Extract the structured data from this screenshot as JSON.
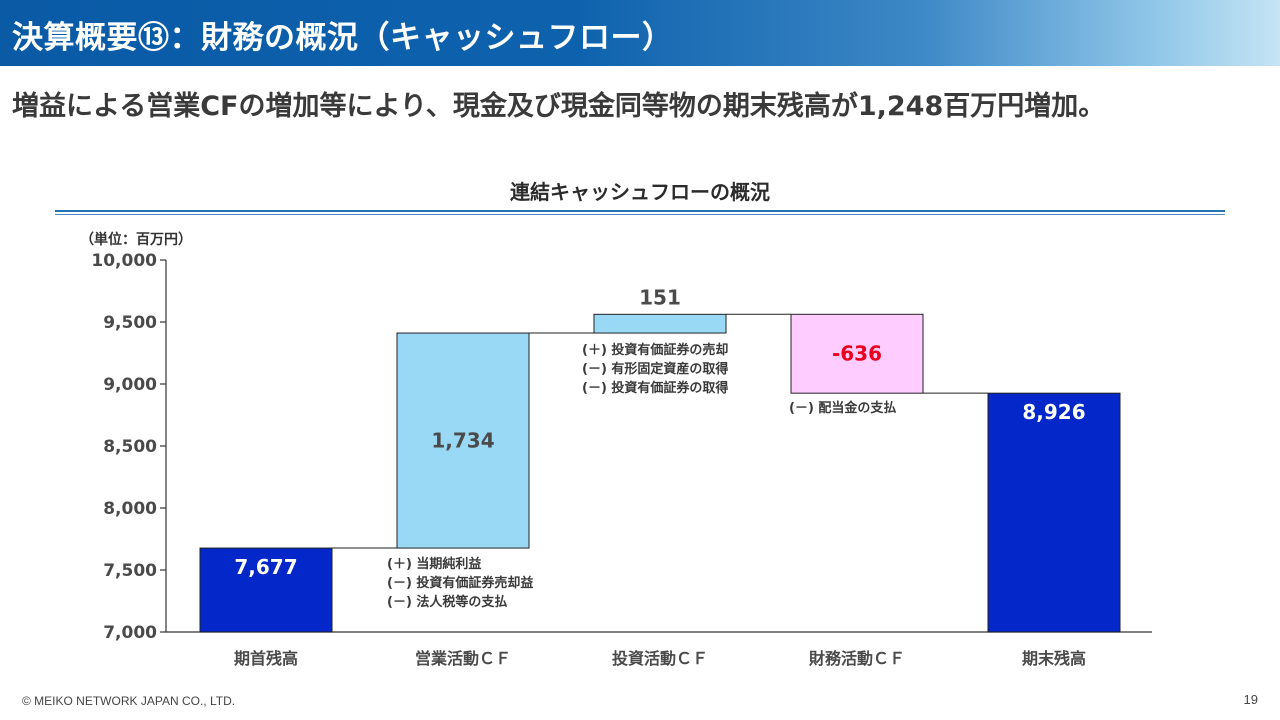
{
  "header": {
    "title": "決算概要⑬：財務の概況（キャッシュフロー）",
    "headline": "増益による営業CFの増加等により、現金及び現金同等物の期末残高が1,248百万円増加。"
  },
  "footer": {
    "copyright": "© MEIKO NETWORK JAPAN CO., LTD.",
    "page_number": "19"
  },
  "colors": {
    "title_bar": "#0e62ad",
    "bar_total": "#0327c8",
    "bar_positive": "#9ad9f5",
    "bar_negative": "#ffccff",
    "negative_label": "#e8001e",
    "rule": "#2472b8"
  },
  "chart_data": {
    "type": "bar",
    "subtype": "waterfall",
    "title": "連結キャッシュフローの概況",
    "unit_label": "（単位：百万円）",
    "ylim": [
      7000,
      10000
    ],
    "yticks": [
      7000,
      7500,
      8000,
      8500,
      9000,
      9500,
      10000
    ],
    "ytick_labels": [
      "7,000",
      "7,500",
      "8,000",
      "8,500",
      "9,000",
      "9,500",
      "10,000"
    ],
    "categories": [
      "期首残高",
      "営業活動ＣＦ",
      "投資活動ＣＦ",
      "財務活動ＣＦ",
      "期末残高"
    ],
    "bars": [
      {
        "category": "期首残高",
        "kind": "total",
        "start": 7000,
        "end": 7677,
        "label": "7,677"
      },
      {
        "category": "営業活動ＣＦ",
        "kind": "increase",
        "start": 7677,
        "end": 9411,
        "label": "1,734"
      },
      {
        "category": "投資活動ＣＦ",
        "kind": "increase",
        "start": 9411,
        "end": 9562,
        "label": "151"
      },
      {
        "category": "財務活動ＣＦ",
        "kind": "decrease",
        "start": 9562,
        "end": 8926,
        "label": "-636"
      },
      {
        "category": "期末残高",
        "kind": "total",
        "start": 7000,
        "end": 8926,
        "label": "8,926"
      }
    ],
    "notes": [
      {
        "category": "営業活動ＣＦ",
        "lines": [
          "(＋) 当期純利益",
          "(－) 投資有価証券売却益",
          "(－) 法人税等の支払"
        ]
      },
      {
        "category": "投資活動ＣＦ",
        "lines": [
          "(＋) 投資有価証券の売却",
          "(－) 有形固定資産の取得",
          "(－) 投資有価証券の取得"
        ]
      },
      {
        "category": "財務活動ＣＦ",
        "lines": [
          "(－) 配当金の支払"
        ]
      }
    ],
    "grid": false,
    "legend": "none"
  }
}
